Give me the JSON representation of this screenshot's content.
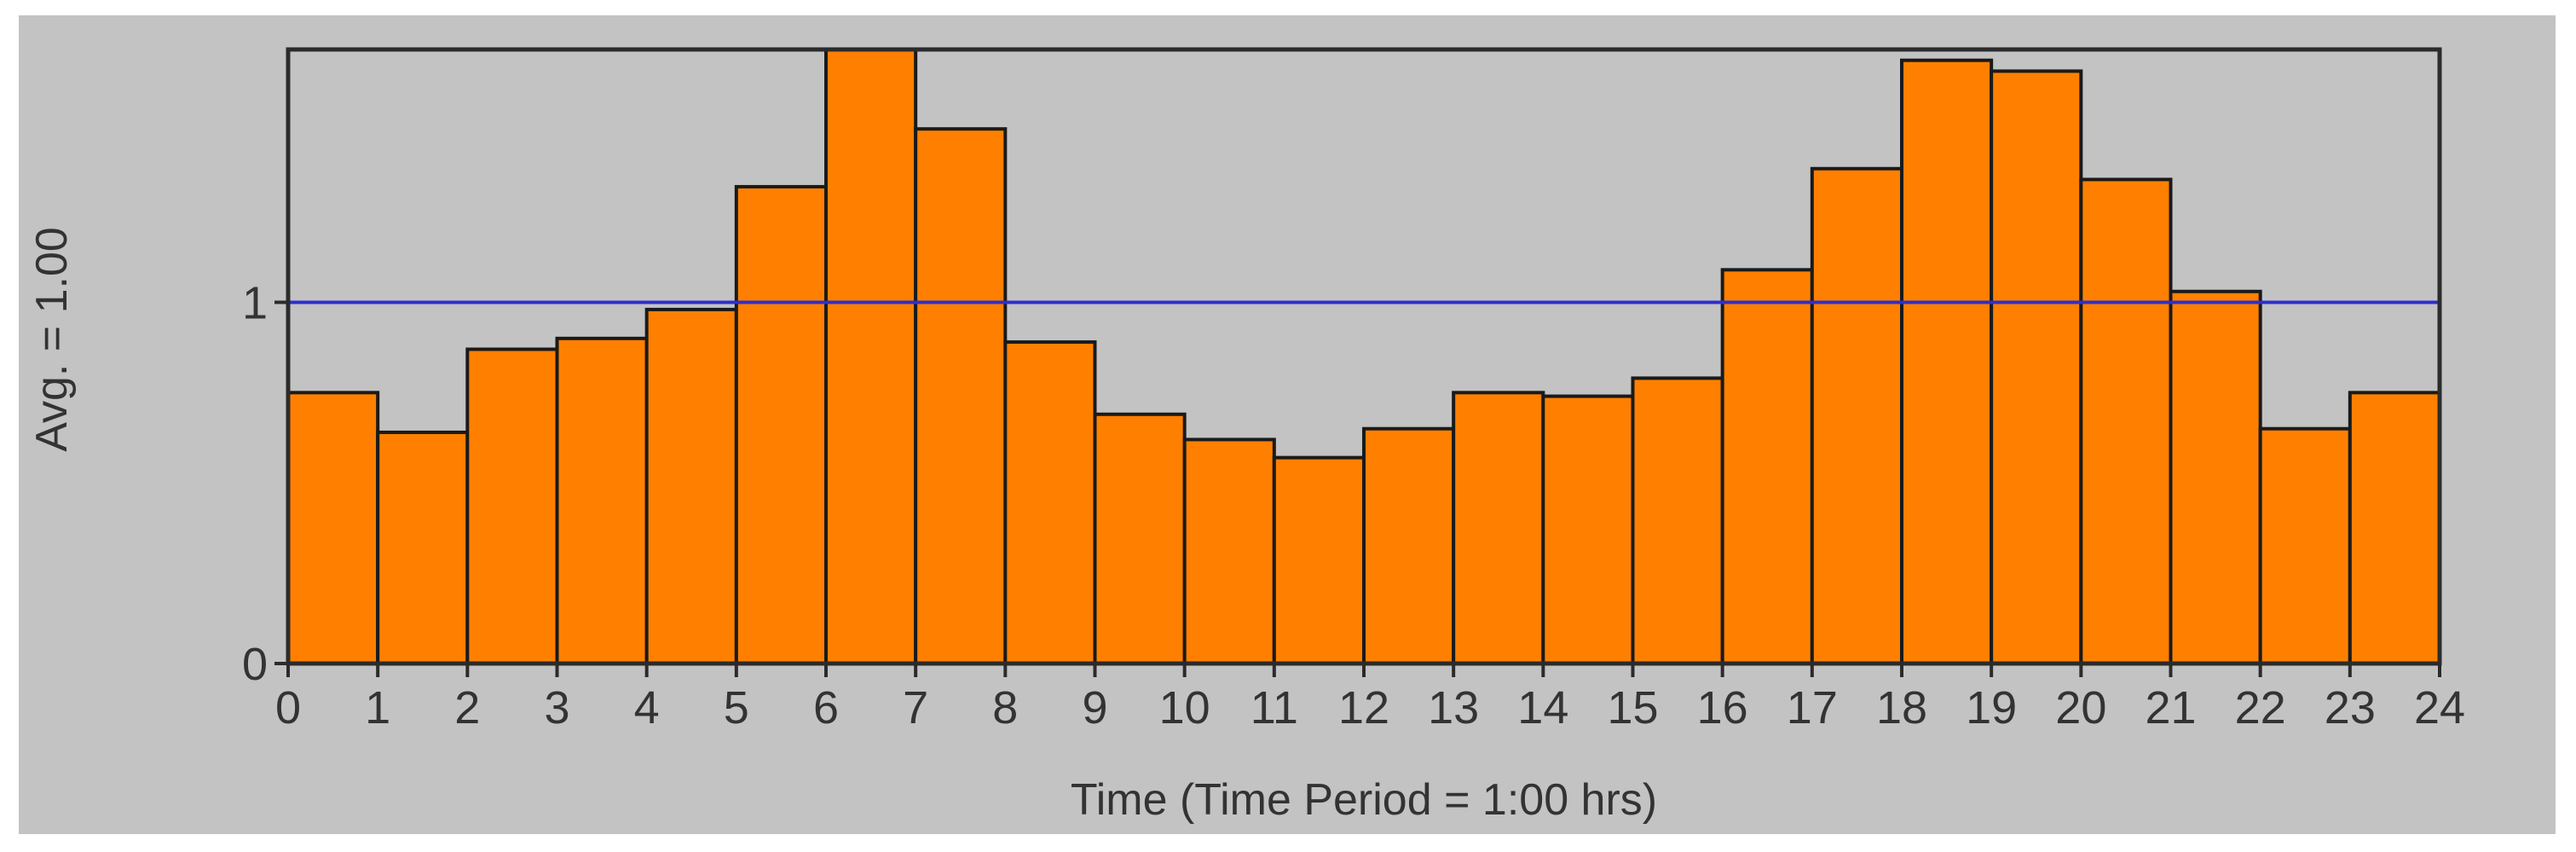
{
  "chart_data": {
    "type": "bar",
    "title": "",
    "xlabel": "Time (Time Period = 1:00  hrs)",
    "ylabel": "Avg. = 1.00",
    "x_ticks": [
      "0",
      "1",
      "2",
      "3",
      "4",
      "5",
      "6",
      "7",
      "8",
      "9",
      "10",
      "11",
      "12",
      "13",
      "14",
      "15",
      "16",
      "17",
      "18",
      "19",
      "20",
      "21",
      "22",
      "23",
      "24"
    ],
    "y_ticks": [
      "0",
      "1"
    ],
    "xlim": [
      0,
      24
    ],
    "ylim": [
      0,
      1.7
    ],
    "bin_edges": [
      0,
      1,
      2,
      3,
      4,
      5,
      6,
      7,
      8,
      9,
      10,
      11,
      12,
      13,
      14,
      15,
      16,
      17,
      18,
      19,
      20,
      21,
      22,
      23,
      24
    ],
    "values": [
      0.75,
      0.64,
      0.87,
      0.9,
      0.98,
      1.32,
      1.7,
      1.48,
      0.89,
      0.69,
      0.62,
      0.57,
      0.65,
      0.75,
      0.74,
      0.79,
      1.09,
      1.37,
      1.67,
      1.64,
      1.34,
      1.03,
      0.65,
      0.75
    ],
    "reference_line": {
      "value": 1.0,
      "color": "#2e2ecf"
    },
    "grid": false,
    "colors": {
      "bar_fill": "#ff8000",
      "bar_stroke": "#1a1a1a",
      "panel_background": "#c3c3c3",
      "plot_background": "#c3c3c3",
      "frame": "#2b2b2b",
      "text": "#333333"
    }
  }
}
